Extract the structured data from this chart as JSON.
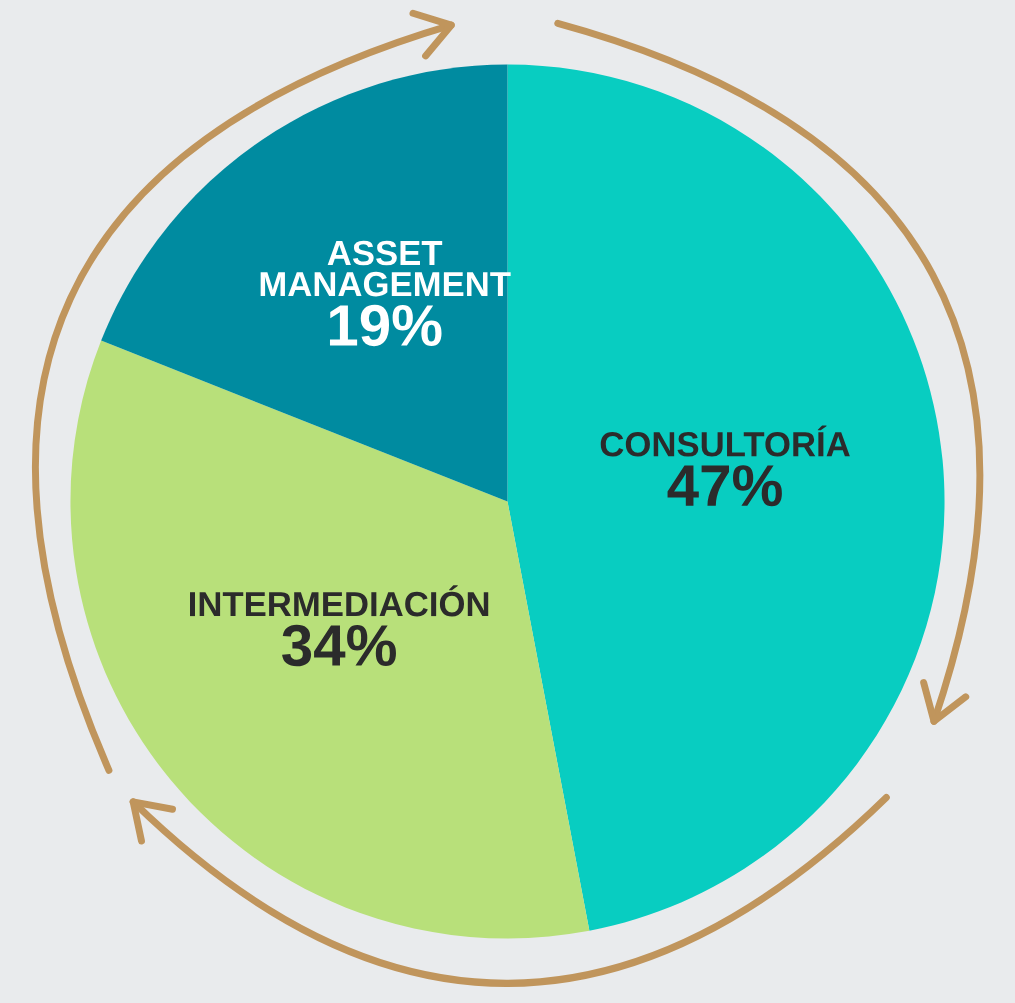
{
  "chart_data": {
    "type": "pie",
    "categories": [
      "CONSULTORÍA",
      "INTERMEDIACIÓN",
      "ASSET MANAGEMENT"
    ],
    "values": [
      47,
      34,
      19
    ],
    "value_labels": [
      "47%",
      "34%",
      "19%"
    ],
    "colors": [
      "#08cdc1",
      "#b8e07a",
      "#008ba0"
    ],
    "legend": false
  }
}
